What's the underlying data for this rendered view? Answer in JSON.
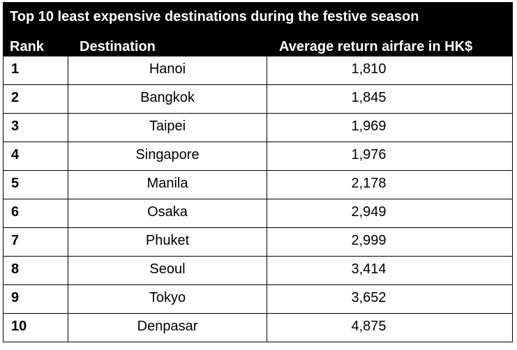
{
  "chart_data": {
    "type": "table",
    "title": "Top 10 least expensive destinations during the festive season",
    "columns": [
      "Rank",
      "Destination",
      "Average return airfare in HK$"
    ],
    "rows": [
      {
        "rank": "1",
        "destination": "Hanoi",
        "fare": "1,810"
      },
      {
        "rank": "2",
        "destination": "Bangkok",
        "fare": "1,845"
      },
      {
        "rank": "3",
        "destination": "Taipei",
        "fare": "1,969"
      },
      {
        "rank": "4",
        "destination": "Singapore",
        "fare": "1,976"
      },
      {
        "rank": "5",
        "destination": "Manila",
        "fare": "2,178"
      },
      {
        "rank": "6",
        "destination": "Osaka",
        "fare": "2,949"
      },
      {
        "rank": "7",
        "destination": "Phuket",
        "fare": "2,999"
      },
      {
        "rank": "8",
        "destination": "Seoul",
        "fare": "3,414"
      },
      {
        "rank": "9",
        "destination": "Tokyo",
        "fare": "3,652"
      },
      {
        "rank": "10",
        "destination": "Denpasar",
        "fare": "4,875"
      }
    ]
  },
  "colors": {
    "header_background": "#000000",
    "header_text": "#ffffff",
    "body_text": "#000000",
    "grid_lines": "#000000"
  }
}
